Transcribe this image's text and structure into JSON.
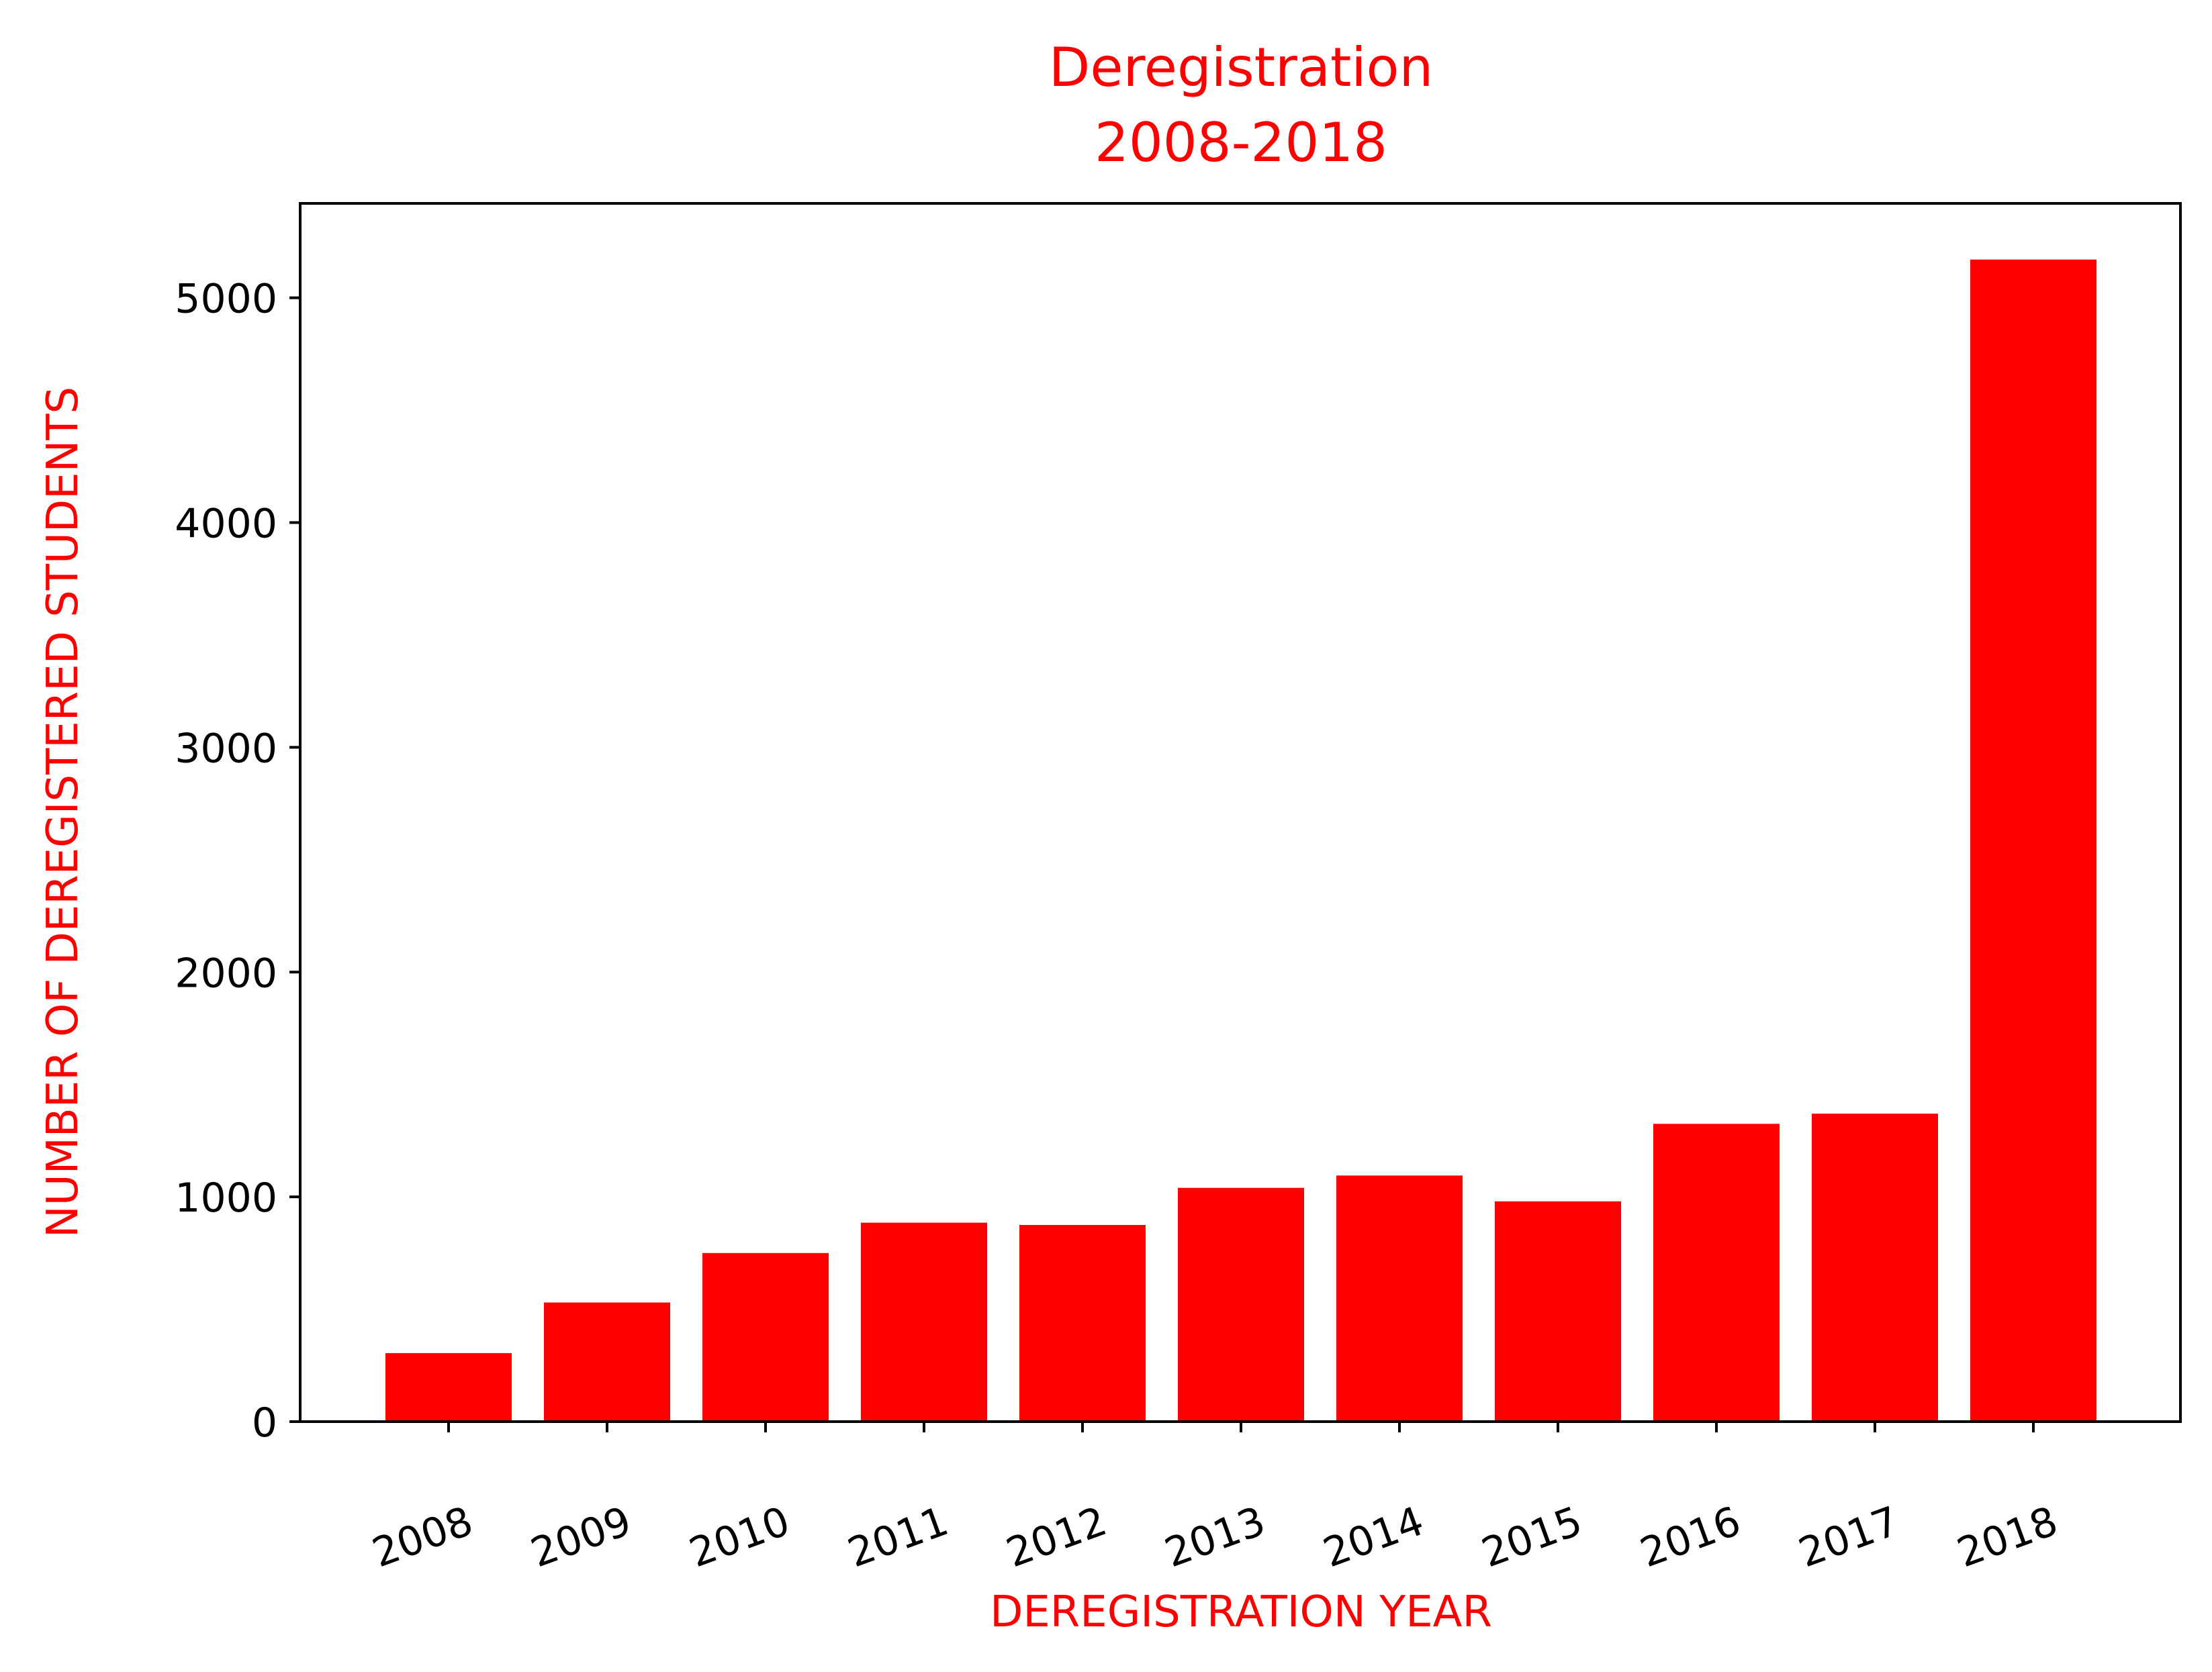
{
  "colors": {
    "bar": "#ff0000",
    "title": "#ff0000",
    "axis_label": "#ff0000",
    "axis": "#000000",
    "tick_text": "#000000",
    "background": "#ffffff"
  },
  "chart_data": {
    "type": "bar",
    "title": "Deregistration",
    "subtitle": "2008-2018",
    "xlabel": "DEREGISTRATION YEAR",
    "ylabel": "NUMBER OF DEREGISTERED STUDENTS",
    "categories": [
      "2008",
      "2009",
      "2010",
      "2011",
      "2012",
      "2013",
      "2014",
      "2015",
      "2016",
      "2017",
      "2018"
    ],
    "values": [
      305,
      530,
      750,
      885,
      875,
      1040,
      1095,
      980,
      1325,
      1370,
      5170
    ],
    "ylim": [
      0,
      5420
    ],
    "yticks": [
      0,
      1000,
      2000,
      3000,
      4000,
      5000
    ],
    "xtick_rotation": "slanted",
    "grid": false,
    "legend": "none"
  }
}
